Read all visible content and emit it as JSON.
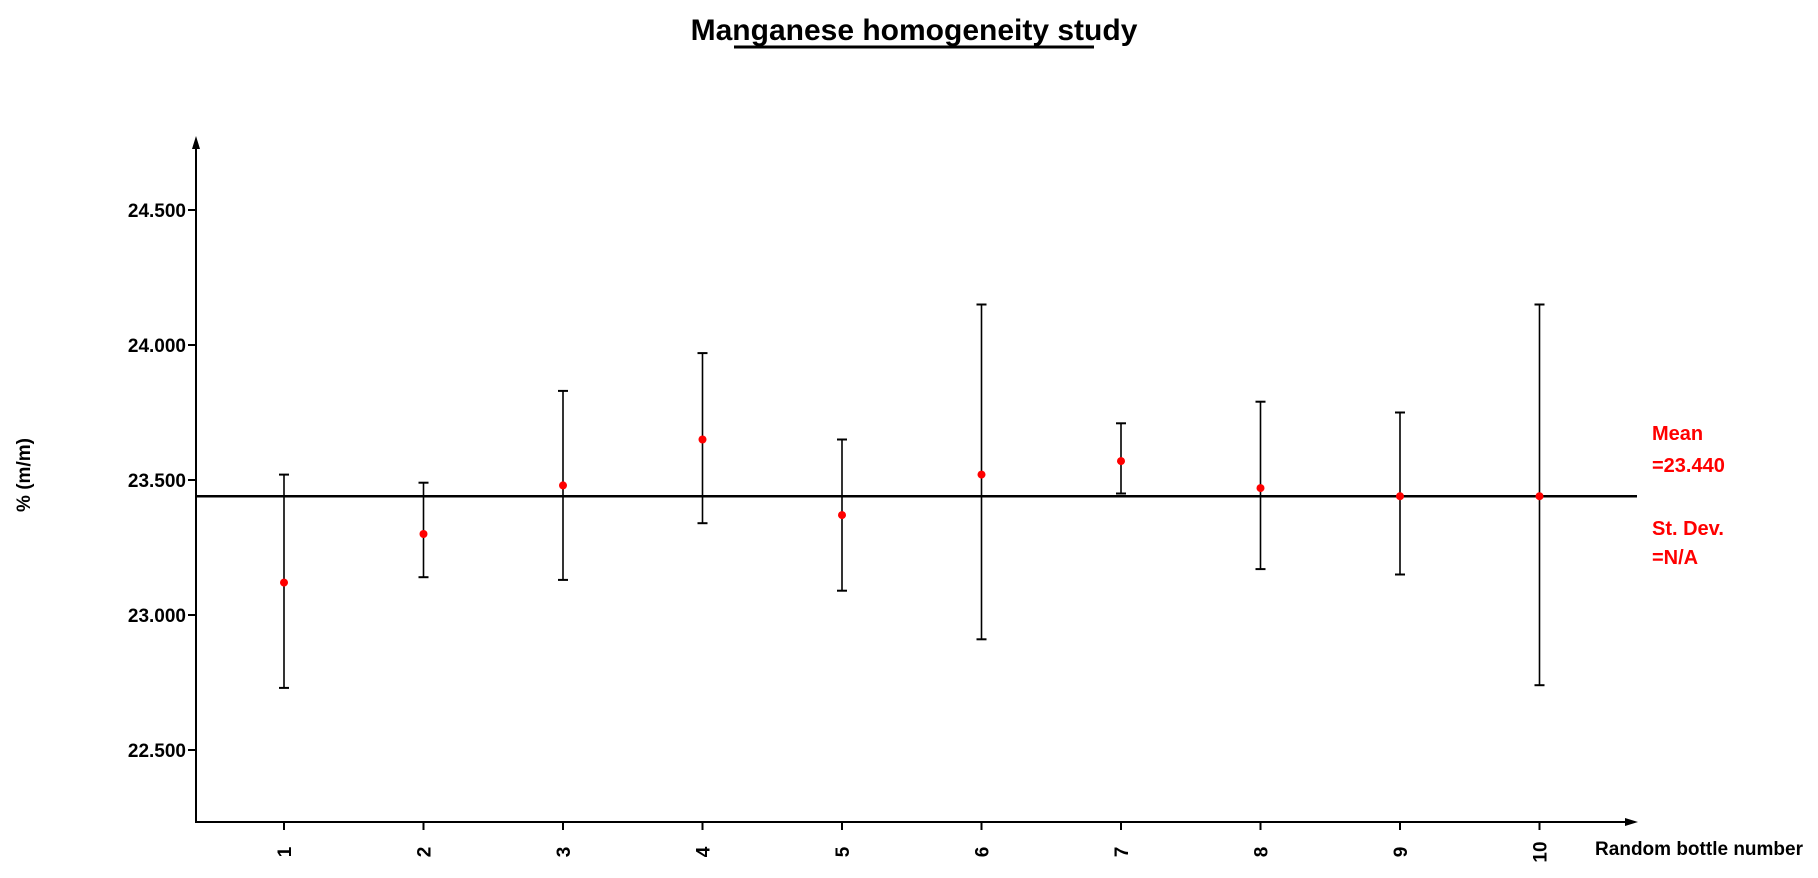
{
  "chart_data": {
    "type": "scatter",
    "title": "Manganese homogeneity study",
    "xlabel": "Random bottle number",
    "ylabel": "% (m/m)",
    "categories": [
      "1",
      "2",
      "3",
      "4",
      "5",
      "6",
      "7",
      "8",
      "9",
      "10"
    ],
    "series": [
      {
        "values": [
          23.12,
          23.3,
          23.48,
          23.65,
          23.37,
          23.52,
          23.57,
          23.47,
          23.44,
          23.44
        ],
        "error_low": [
          22.73,
          23.14,
          23.13,
          23.34,
          23.09,
          22.91,
          23.45,
          23.17,
          23.15,
          22.74
        ],
        "error_high": [
          23.52,
          23.49,
          23.83,
          23.97,
          23.65,
          24.15,
          23.71,
          23.79,
          23.75,
          24.15
        ]
      }
    ],
    "yticks": [
      22.5,
      23.0,
      23.5,
      24.0,
      24.5
    ],
    "ytick_labels": [
      "22.500",
      "23.000",
      "23.500",
      "24.000",
      "24.500"
    ],
    "ylim": [
      22.23,
      24.75
    ],
    "mean_line": 23.44,
    "annotations": {
      "mean_label": "Mean",
      "mean_value": "=23.440",
      "stdev_label": "St. Dev.",
      "stdev_value": "=N/A"
    },
    "grid": false,
    "colors": {
      "point": "#ff0000",
      "annotation": "#ff0000",
      "line": "#000000"
    }
  }
}
